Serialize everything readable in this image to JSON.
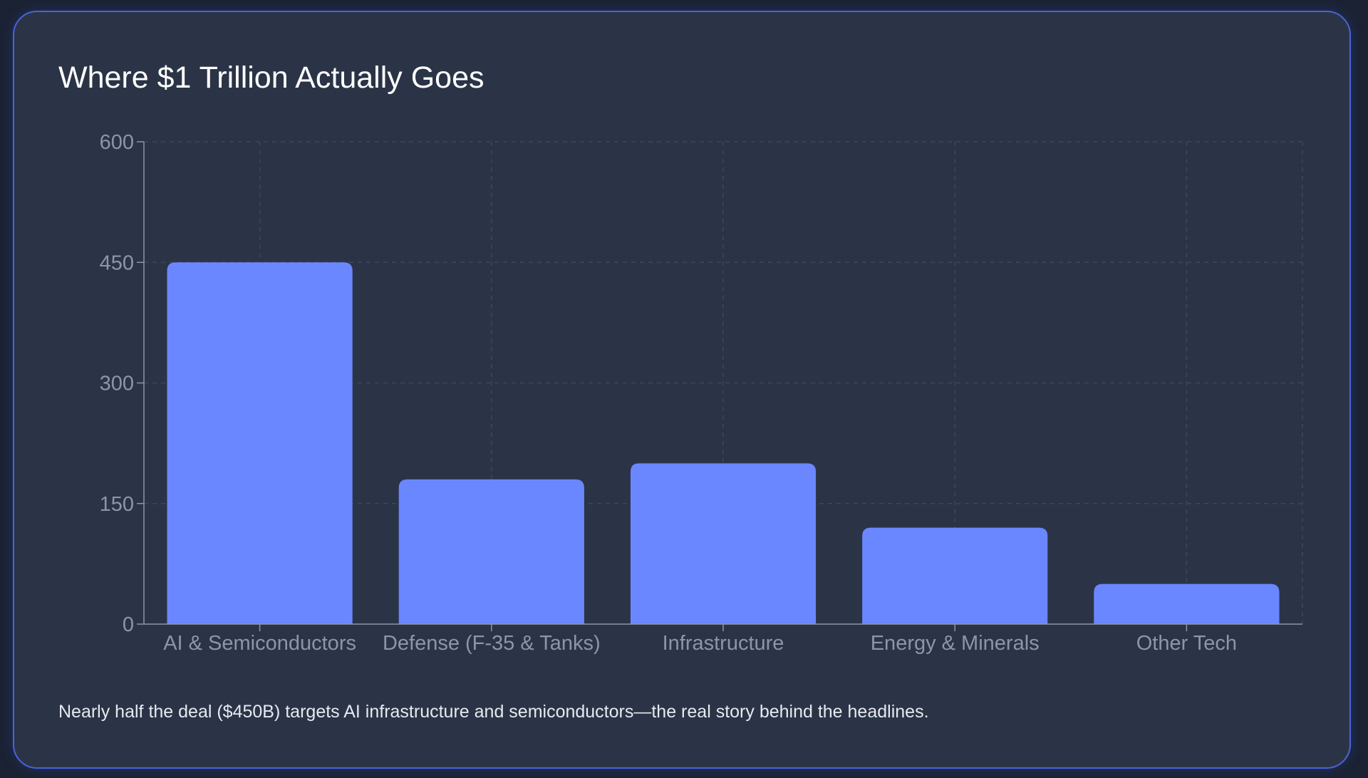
{
  "card": {
    "title": "Where $1 Trillion Actually Goes",
    "caption": "Nearly half the deal ($450B) targets AI infrastructure and semiconductors—the real story behind the headlines."
  },
  "colors": {
    "bar": "#6b87ff",
    "grid": "#3d4759",
    "axis": "#8d95a8",
    "text": "#8d95a8"
  },
  "chart_data": {
    "type": "bar",
    "categories": [
      "AI & Semiconductors",
      "Defense (F-35 & Tanks)",
      "Infrastructure",
      "Energy & Minerals",
      "Other Tech"
    ],
    "values": [
      450,
      180,
      200,
      120,
      50
    ],
    "title": "Where $1 Trillion Actually Goes",
    "xlabel": "",
    "ylabel": "",
    "ylim": [
      0,
      600
    ],
    "yticks": [
      0,
      150,
      300,
      450,
      600
    ],
    "grid": true,
    "legend": "none"
  }
}
